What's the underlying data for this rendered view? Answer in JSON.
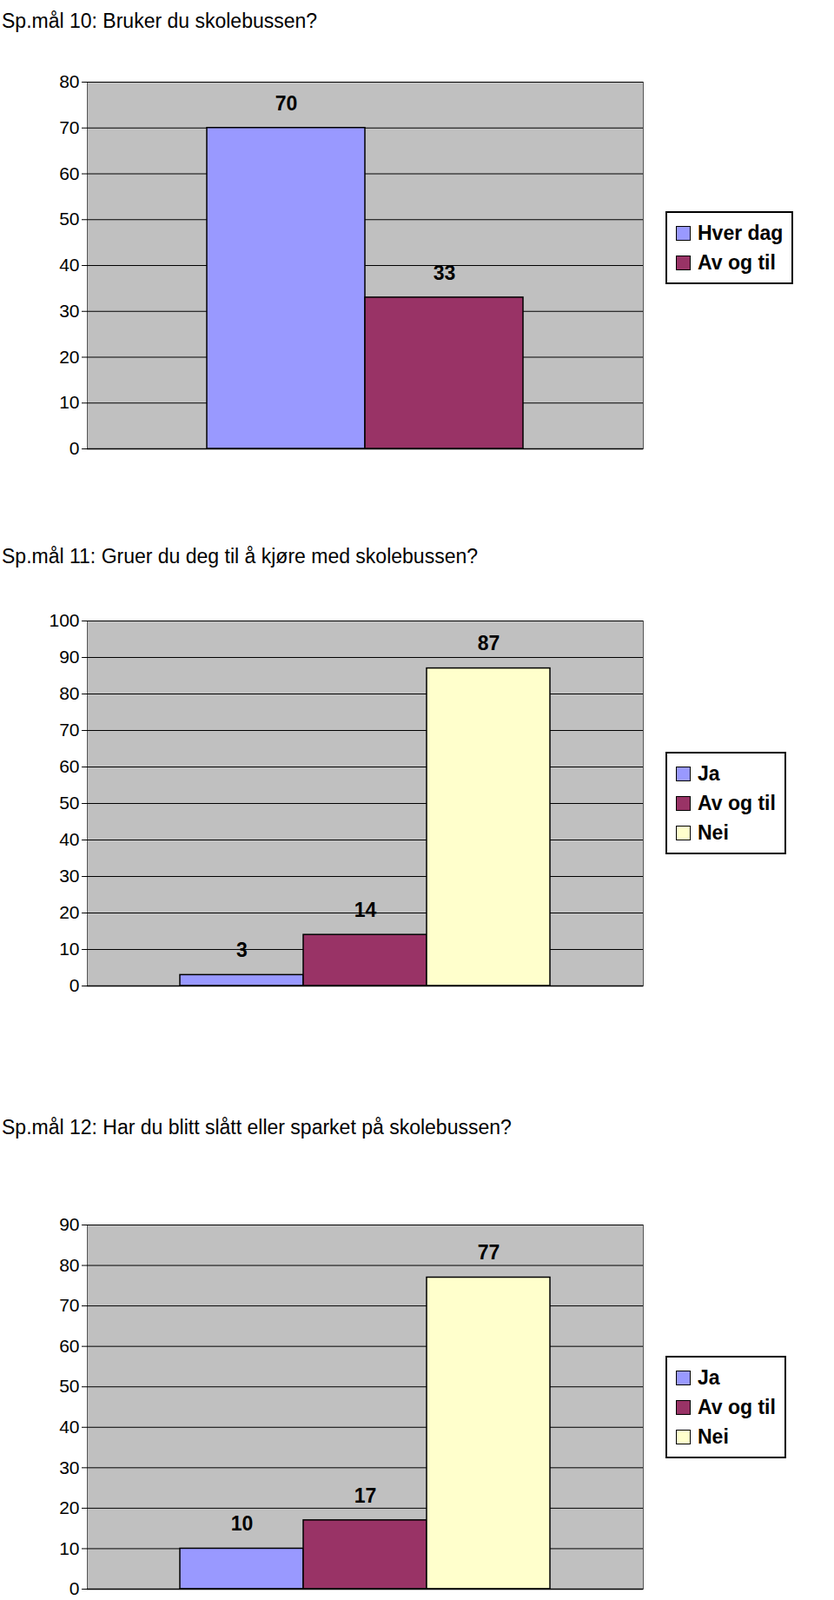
{
  "chart_data": [
    {
      "type": "bar",
      "title": "Sp.mål 10: Bruker du skolebussen?",
      "categories": [
        "Hver dag",
        "Av og til"
      ],
      "values": [
        70,
        33
      ],
      "colors": [
        "#9999ff",
        "#993366"
      ],
      "ylim": [
        0,
        80
      ],
      "yticks": [
        0,
        10,
        20,
        30,
        40,
        50,
        60,
        70,
        80
      ],
      "grid": true,
      "legend": "right",
      "data_labels": true,
      "tick_labels": "y"
    },
    {
      "type": "bar",
      "title": "Sp.mål 11: Gruer du deg til å kjøre med skolebussen?",
      "categories": [
        "Ja",
        "Av og til",
        "Nei"
      ],
      "values": [
        3,
        14,
        87
      ],
      "colors": [
        "#9999ff",
        "#993366",
        "#ffffcc"
      ],
      "ylim": [
        0,
        100
      ],
      "yticks": [
        0,
        10,
        20,
        30,
        40,
        50,
        60,
        70,
        80,
        90,
        100
      ],
      "grid": true,
      "legend": "right",
      "data_labels": true,
      "tick_labels": "y"
    },
    {
      "type": "bar",
      "title": "Sp.mål 12: Har du blitt slått eller sparket på skolebussen?",
      "categories": [
        "Ja",
        "Av og til",
        "Nei"
      ],
      "values": [
        10,
        17,
        77
      ],
      "colors": [
        "#9999ff",
        "#993366",
        "#ffffcc"
      ],
      "ylim": [
        0,
        90
      ],
      "yticks": [
        0,
        10,
        20,
        30,
        40,
        50,
        60,
        70,
        80,
        90
      ],
      "grid": true,
      "legend": "right",
      "data_labels": true,
      "tick_labels": "y"
    }
  ]
}
